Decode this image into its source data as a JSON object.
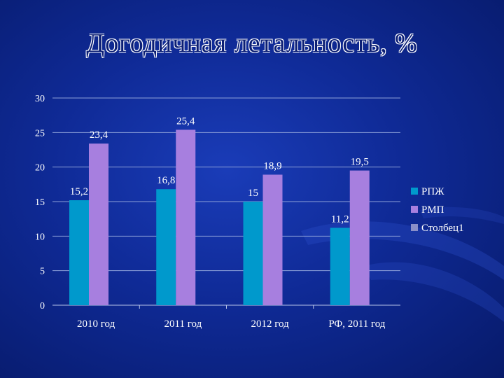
{
  "slide": {
    "title": "Догодичная летальность, %"
  },
  "colors": {
    "background": "#0f2a96",
    "gridline": "#8da0d8",
    "axis": "#b8c4e8",
    "text": "#ffffff"
  },
  "chart_data": {
    "type": "bar",
    "title": "Догодичная летальность, %",
    "categories": [
      "2010 год",
      "2011 год",
      "2012 год",
      "РФ, 2011 год"
    ],
    "series": [
      {
        "name": "РПЖ",
        "color": "#0099cc",
        "values": [
          15.2,
          16.8,
          15,
          11.2
        ],
        "labels": [
          "15,2",
          "16,8",
          "15",
          "11,2"
        ]
      },
      {
        "name": "РМП",
        "color": "#a77fdf",
        "values": [
          23.4,
          25.4,
          18.9,
          19.5
        ],
        "labels": [
          "23,4",
          "25,4",
          "18,9",
          "19,5"
        ]
      },
      {
        "name": "Столбец1",
        "color": "#8a8fc8",
        "values": [
          null,
          null,
          null,
          null
        ],
        "labels": [
          "",
          "",
          "",
          ""
        ]
      }
    ],
    "yticks": [
      "0",
      "5",
      "10",
      "15",
      "20",
      "25",
      "30"
    ],
    "ylim": [
      0,
      30
    ],
    "grid": true,
    "legend": "right"
  }
}
